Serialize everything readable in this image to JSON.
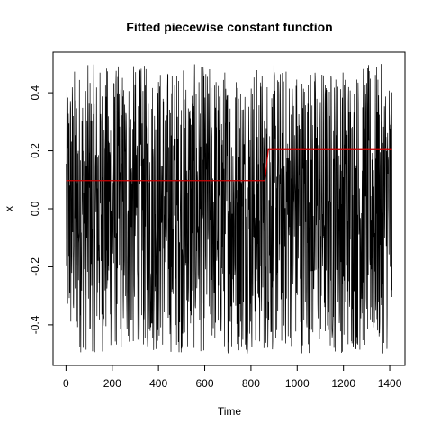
{
  "chart_data": {
    "type": "line",
    "title": "Fitted piecewise constant function",
    "xlabel": "Time",
    "ylabel": "x",
    "xlim": [
      -56,
      1466
    ],
    "ylim": [
      -0.54,
      0.54
    ],
    "x_ticks": [
      0,
      200,
      400,
      600,
      800,
      1000,
      1200,
      1400
    ],
    "y_ticks": [
      -0.4,
      -0.2,
      0.0,
      0.2,
      0.4
    ],
    "x_tick_labels": [
      "0",
      "200",
      "400",
      "600",
      "800",
      "1000",
      "1200",
      "1400"
    ],
    "y_tick_labels": [
      "-0.4",
      "-0.2",
      "0.0",
      "0.2",
      "0.4"
    ],
    "grid": false,
    "series": [
      {
        "role": "raw_series",
        "color": "#000000",
        "n_points": 1410,
        "x_start": 1,
        "x_end": 1410,
        "min": -0.5,
        "max": 0.5
      },
      {
        "role": "fitted_piecewise_constant",
        "color": "#cc0000",
        "x": [
          1,
          860,
          875,
          1410
        ],
        "y": [
          0.097,
          0.097,
          0.204,
          0.204
        ]
      }
    ]
  }
}
